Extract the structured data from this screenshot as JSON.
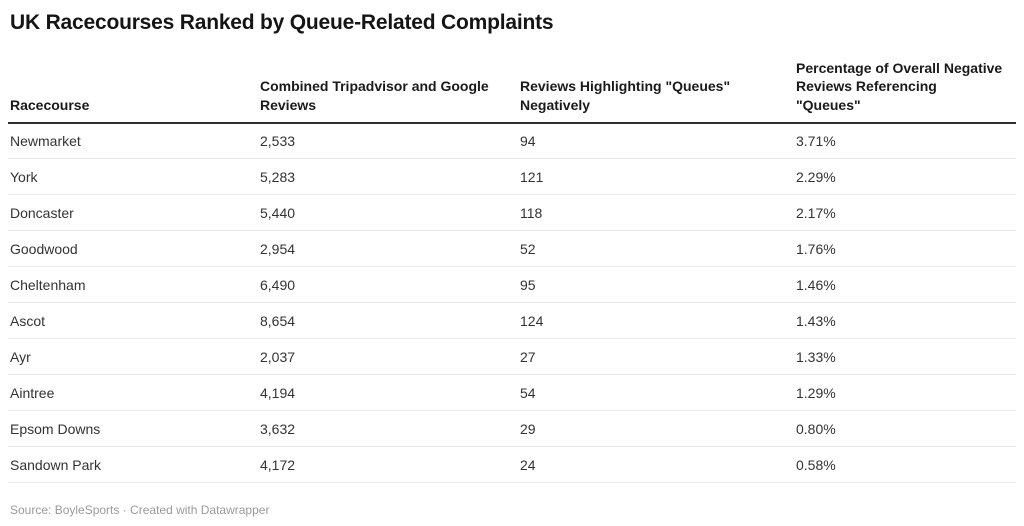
{
  "title": "UK Racecourses Ranked by Queue-Related Complaints",
  "footer": {
    "text": "Source: BoyleSports · Created with Datawrapper"
  },
  "chart_data": {
    "type": "table",
    "title": "UK Racecourses Ranked by Queue-Related Complaints",
    "columns": [
      "Racecourse",
      "Combined Tripadvisor and Google Reviews",
      "Reviews Highlighting \"Queues\" Negatively",
      "Percentage of Overall Negative Reviews Referencing \"Queues\""
    ],
    "rows": [
      [
        "Newmarket",
        "2,533",
        "94",
        "3.71%"
      ],
      [
        "York",
        "5,283",
        "121",
        "2.29%"
      ],
      [
        "Doncaster",
        "5,440",
        "118",
        "2.17%"
      ],
      [
        "Goodwood",
        "2,954",
        "52",
        "1.76%"
      ],
      [
        "Cheltenham",
        "6,490",
        "95",
        "1.46%"
      ],
      [
        "Ascot",
        "8,654",
        "124",
        "1.43%"
      ],
      [
        "Ayr",
        "2,037",
        "27",
        "1.33%"
      ],
      [
        "Aintree",
        "4,194",
        "54",
        "1.29%"
      ],
      [
        "Epsom Downs",
        "3,632",
        "29",
        "0.80%"
      ],
      [
        "Sandown Park",
        "4,172",
        "24",
        "0.58%"
      ]
    ]
  },
  "colors": {
    "background": "#ffffff",
    "title_text": "#151515",
    "header_text": "#1a1a1a",
    "cell_text": "#333333",
    "header_border": "#2e2e2e",
    "row_border": "#e9e9e9",
    "footer_text": "#9a9a9a"
  }
}
